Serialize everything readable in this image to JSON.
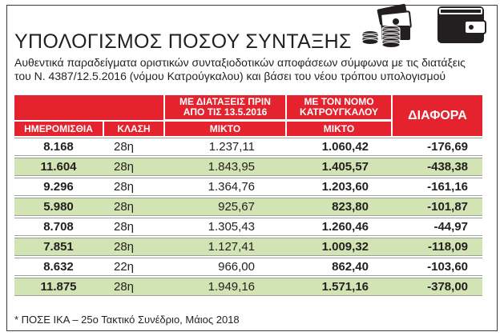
{
  "title": "ΥΠΟΛΟΓΙΣΜΟΣ ΠΟΣΟΥ ΣΥΝΤΑΞΗΣ",
  "subtitle": "Αυθεντικά παραδείγματα οριστικών συνταξιοδοτικών αποφάσεων σύμφωνα με τις διατάξεις του Ν. 4387/12.5.2016 (νόμου Κατρούγκαλου) και βάσει του νέου τρόπου υπολογισμού",
  "icons": [
    "coins-stack-icon",
    "banknotes-icon",
    "wallet-icon"
  ],
  "colors": {
    "header_red": "#e4232f",
    "row_green": "#d3e4b4"
  },
  "table": {
    "group_headers": {
      "before": "ΜΕ ΔΙΑΤΑΞΕΙΣ ΠΡΙΝ ΑΠΟ ΤΙΣ 13.5.2016",
      "after": "ΜΕ ΤΟΝ ΝΟΜΟ ΚΑΤΡΟΥΓΚΑΛΟΥ",
      "diff": "ΔΙΑΦΟΡΑ"
    },
    "columns": {
      "days": "ΗΜΕΡΟΜΙΣΘΙΑ",
      "class": "ΚΛΑΣΗ",
      "mikto_before": "ΜΙΚΤΟ",
      "mikto_after": "ΜΙΚΤΟ"
    },
    "rows": [
      {
        "days": "8.168",
        "class": "28η",
        "before": "1.237,11",
        "after": "1.060,42",
        "diff": "-176,69"
      },
      {
        "days": "11.604",
        "class": "28η",
        "before": "1.843,95",
        "after": "1.405,57",
        "diff": "-438,38"
      },
      {
        "days": "9.296",
        "class": "28η",
        "before": "1.364,76",
        "after": "1.203,60",
        "diff": "-161,16"
      },
      {
        "days": "5.980",
        "class": "28η",
        "before": "925,67",
        "after": "823,80",
        "diff": "-101,87"
      },
      {
        "days": "8.708",
        "class": "28η",
        "before": "1.305,43",
        "after": "1.260,46",
        "diff": "-44,97"
      },
      {
        "days": "7.851",
        "class": "28η",
        "before": "1.127,41",
        "after": "1.009,32",
        "diff": "-118,09"
      },
      {
        "days": "8.632",
        "class": "22η",
        "before": "966,00",
        "after": "862,40",
        "diff": "-103,60"
      },
      {
        "days": "11.875",
        "class": "28η",
        "before": "1.949,16",
        "after": "1.571,16",
        "diff": "-378,00"
      }
    ]
  },
  "footnote": "* ΠΟΣΕ ΙΚΑ – 25ο Τακτικό Συνέδριο, Μάιος 2018"
}
